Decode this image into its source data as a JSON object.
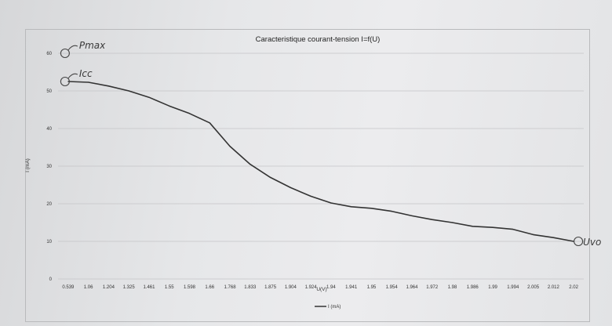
{
  "chart_data": {
    "type": "line",
    "title": "Caracteristique courant-tension I=f(U)",
    "xlabel": "U(V)",
    "ylabel": "I (mA)",
    "ylim": [
      0,
      60
    ],
    "yticks": [
      0,
      10,
      20,
      30,
      40,
      50,
      60
    ],
    "grid": true,
    "legend": "bottom",
    "categories": [
      "0.539",
      "1.06",
      "1.204",
      "1.325",
      "1.461",
      "1.55",
      "1.598",
      "1.66",
      "1.768",
      "1.833",
      "1.875",
      "1.904",
      "1.924",
      "1.94",
      "1.941",
      "1.95",
      "1.954",
      "1.964",
      "1.972",
      "1.98",
      "1.986",
      "1.99",
      "1.994",
      "2.005",
      "2.012",
      "2.02"
    ],
    "series": [
      {
        "name": "I (mA)",
        "color": "#333333",
        "values": [
          52.5,
          52.3,
          51.3,
          50,
          48.3,
          46,
          44,
          41.5,
          35.3,
          30.5,
          27,
          24.3,
          22,
          20.2,
          19.2,
          18.8,
          18,
          16.8,
          15.8,
          15,
          14,
          13.7,
          13.2,
          11.8,
          11,
          10
        ]
      }
    ],
    "annotations": [
      {
        "text": "Pmax",
        "category": "0.539",
        "value": 60
      },
      {
        "text": "Icc",
        "category": "0.539",
        "value": 52.5
      },
      {
        "text": "Uvo",
        "category": "2.02",
        "value": 10
      }
    ]
  }
}
